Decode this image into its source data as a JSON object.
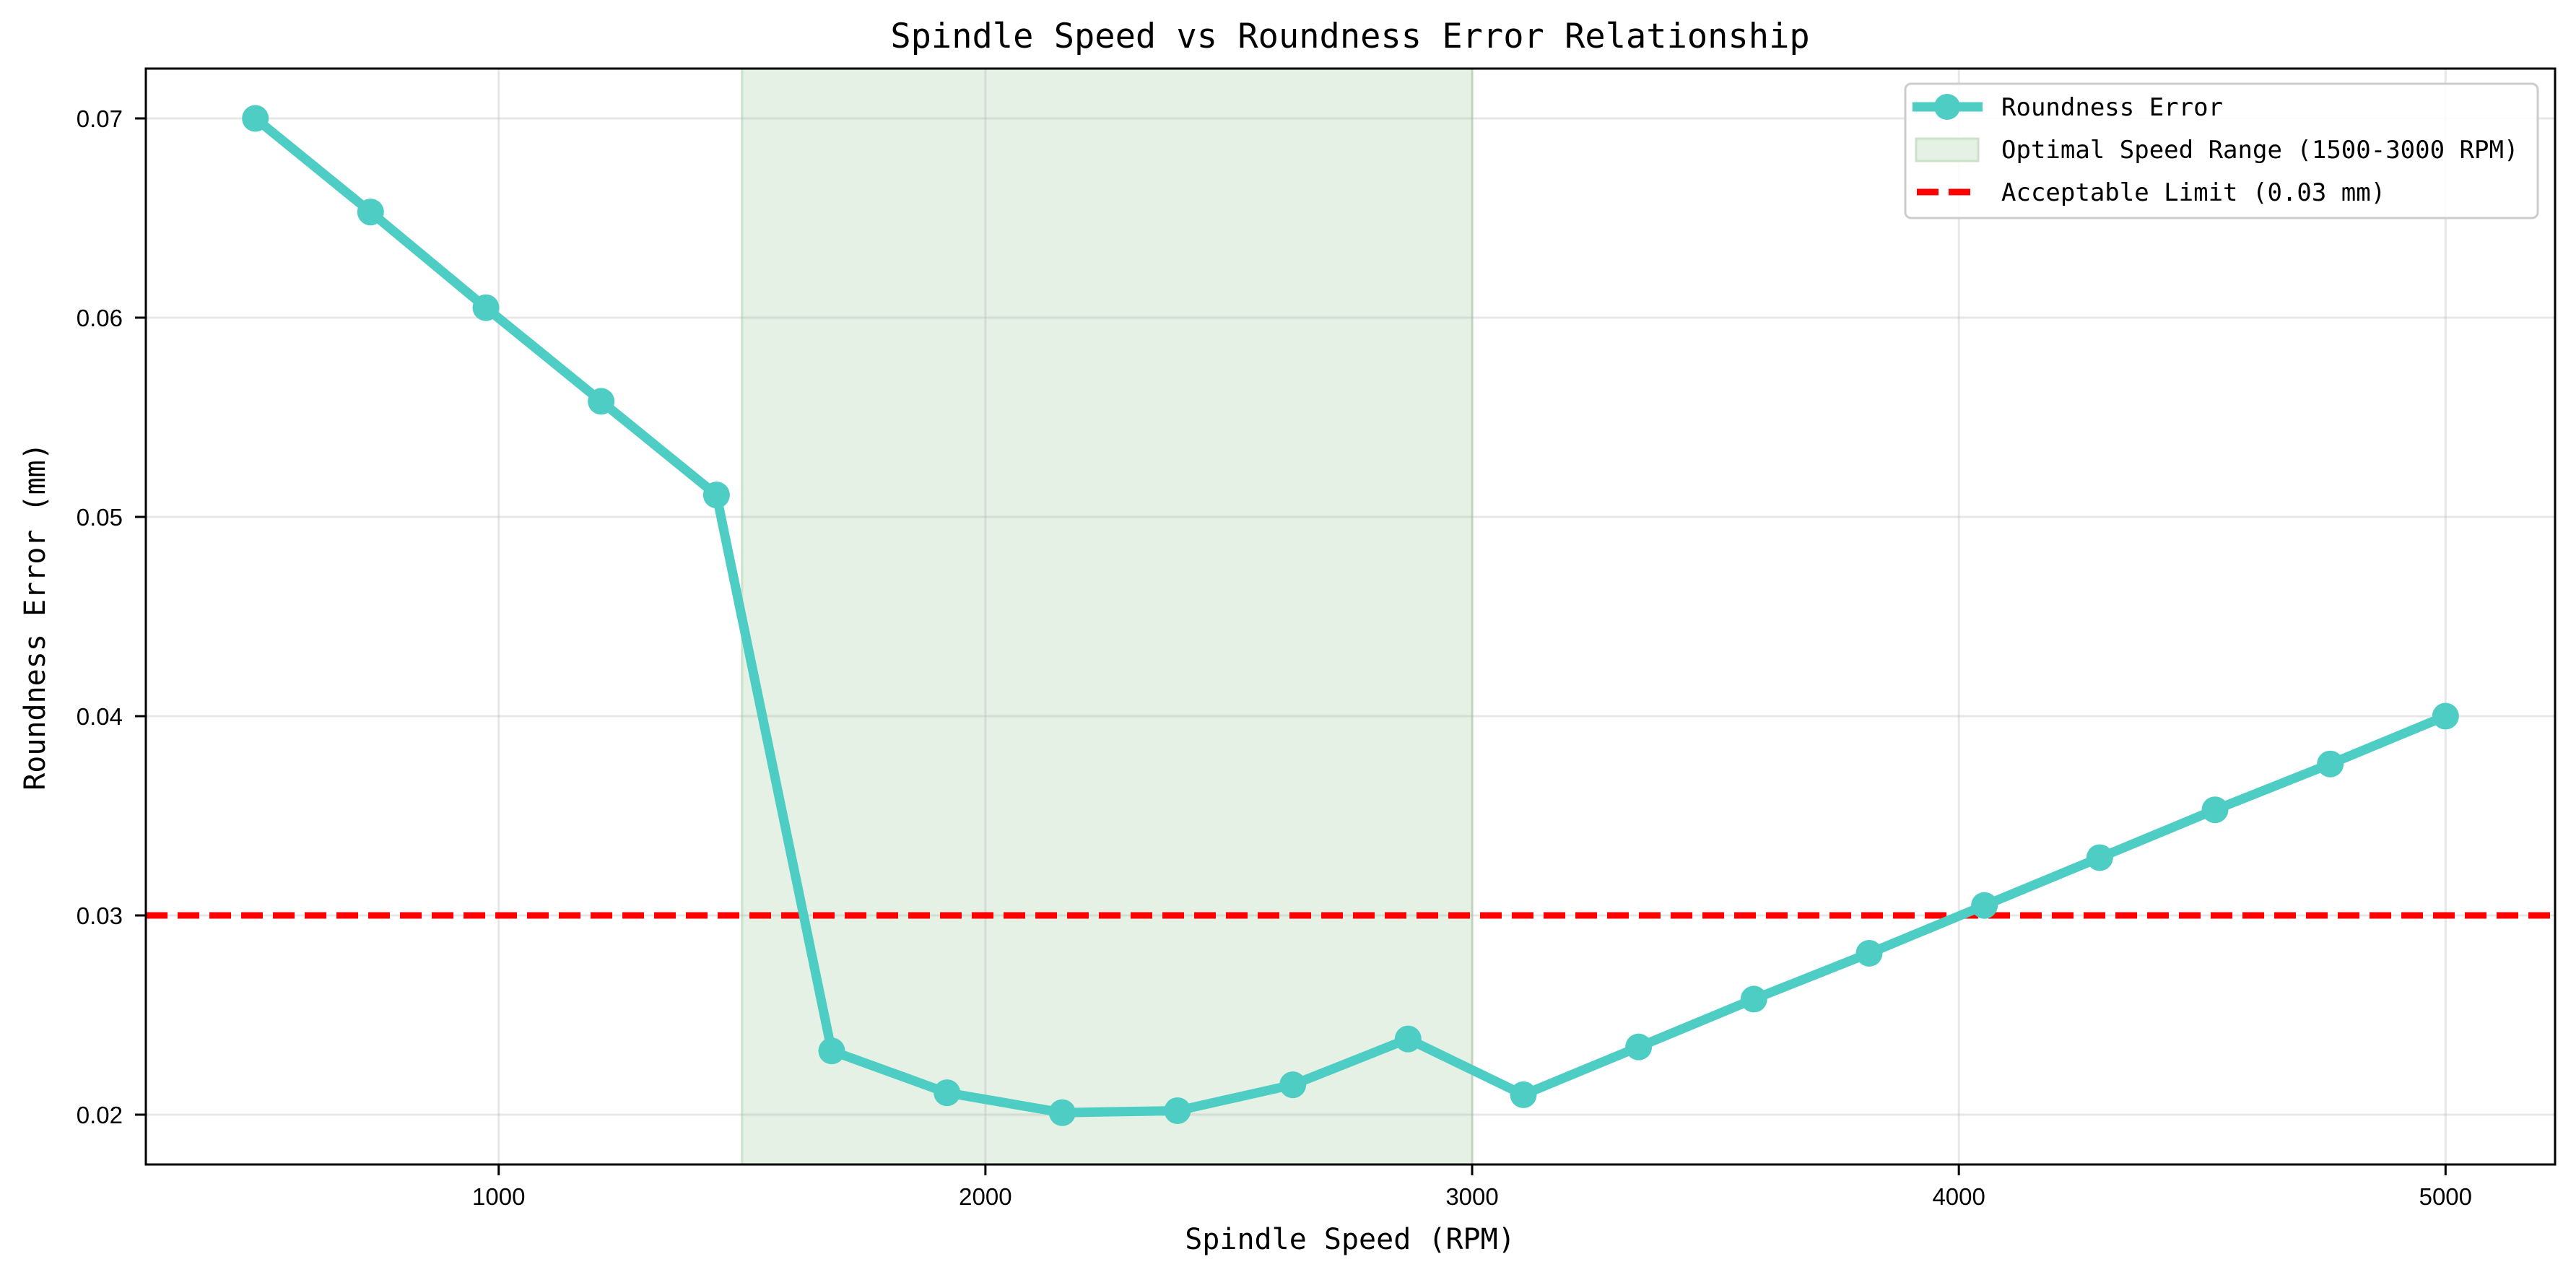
{
  "chart_data": {
    "type": "line",
    "title": "Spindle Speed vs Roundness Error Relationship",
    "xlabel": "Spindle Speed (RPM)",
    "ylabel": "Roundness Error (mm)",
    "xlim": [
      275,
      5225
    ],
    "ylim": [
      0.0175,
      0.0725
    ],
    "x_ticks": [
      1000,
      2000,
      3000,
      4000,
      5000
    ],
    "x_tick_labels": [
      "1000",
      "2000",
      "3000",
      "4000",
      "5000"
    ],
    "y_ticks": [
      0.02,
      0.03,
      0.04,
      0.05,
      0.06,
      0.07
    ],
    "y_tick_labels": [
      "0.02",
      "0.03",
      "0.04",
      "0.05",
      "0.06",
      "0.07"
    ],
    "grid": true,
    "legend_position": "upper right",
    "series": [
      {
        "name": "Roundness Error",
        "type": "line",
        "marker": "circle",
        "color": "#4ecdc4",
        "x": [
          500,
          736.8,
          973.7,
          1210.5,
          1447.4,
          1684.2,
          1921.1,
          2157.9,
          2394.7,
          2631.6,
          2868.4,
          3105.3,
          3342.1,
          3578.9,
          3815.8,
          4052.6,
          4289.5,
          4526.3,
          4763.2,
          5000
        ],
        "values": [
          0.07,
          0.0653,
          0.0605,
          0.0558,
          0.0511,
          0.0232,
          0.0211,
          0.0201,
          0.0202,
          0.0215,
          0.0238,
          0.021,
          0.0234,
          0.0258,
          0.0281,
          0.0305,
          0.0329,
          0.0353,
          0.0376,
          0.04
        ]
      }
    ],
    "annotations": [
      {
        "type": "vspan",
        "name": "Optimal Speed Range (1500-3000 RPM)",
        "x_start": 1500,
        "x_end": 3000,
        "color": "#e4f1e4",
        "edge_color": "#c9e2c9"
      },
      {
        "type": "hline",
        "name": "Acceptable Limit (0.03 mm)",
        "y": 0.03,
        "color": "#ff0000",
        "style": "dashed"
      }
    ],
    "legend": [
      {
        "label": "Roundness Error",
        "kind": "line-marker",
        "color": "#4ecdc4"
      },
      {
        "label": "Optimal Speed Range (1500-3000 RPM)",
        "kind": "patch",
        "color": "#e4f1e4"
      },
      {
        "label": "Acceptable Limit (0.03 mm)",
        "kind": "dashed-line",
        "color": "#ff0000"
      }
    ]
  }
}
